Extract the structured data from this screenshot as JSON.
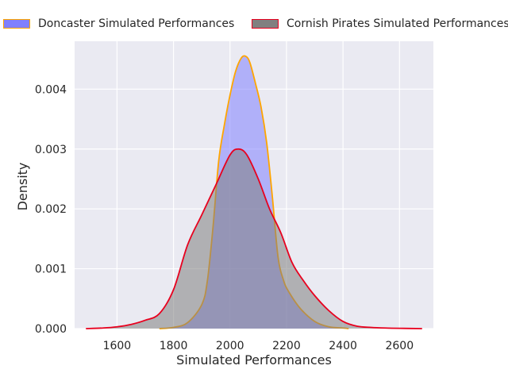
{
  "chart_data": {
    "type": "area",
    "xlabel": "Simulated Performances",
    "ylabel": "Density",
    "xlim": [
      1450,
      2720
    ],
    "ylim": [
      0,
      0.0048
    ],
    "xticks": [
      1600,
      1800,
      2000,
      2200,
      2400,
      2600
    ],
    "xtick_labels": [
      "1600",
      "1800",
      "2000",
      "2200",
      "2400",
      "2600"
    ],
    "yticks": [
      0,
      0.001,
      0.002,
      0.003,
      0.004
    ],
    "ytick_labels": [
      "0.000",
      "0.001",
      "0.002",
      "0.003",
      "0.004"
    ],
    "grid": true,
    "legend_position": "top, outside plot",
    "series": [
      {
        "name": "Doncaster Simulated Performances",
        "fill": "#8080ff",
        "line": "#ffa500",
        "x": [
          1750,
          1800,
          1850,
          1900,
          1920,
          1940,
          1960,
          1980,
          2000,
          2020,
          2040,
          2055,
          2070,
          2090,
          2110,
          2130,
          2150,
          2170,
          2190,
          2210,
          2250,
          2300,
          2350,
          2400,
          2420
        ],
        "y": [
          0,
          2e-05,
          0.0001,
          0.0004,
          0.0008,
          0.0017,
          0.0028,
          0.0034,
          0.0039,
          0.0043,
          0.00452,
          0.00455,
          0.00445,
          0.0041,
          0.0037,
          0.0031,
          0.0022,
          0.0012,
          0.0008,
          0.0006,
          0.00033,
          0.00012,
          3e-05,
          1e-05,
          0
        ]
      },
      {
        "name": "Cornish Pirates Simulated Performances",
        "fill": "#808080",
        "line": "#e8001e",
        "x": [
          1490,
          1550,
          1600,
          1650,
          1700,
          1750,
          1800,
          1850,
          1900,
          1950,
          2000,
          2030,
          2060,
          2100,
          2140,
          2180,
          2220,
          2260,
          2300,
          2350,
          2400,
          2450,
          2500,
          2550,
          2600,
          2680
        ],
        "y": [
          0,
          1e-05,
          3e-05,
          7e-05,
          0.00014,
          0.00025,
          0.00065,
          0.0014,
          0.0019,
          0.0024,
          0.0029,
          0.003,
          0.0029,
          0.0025,
          0.002,
          0.0016,
          0.0011,
          0.0008,
          0.00055,
          0.0003,
          0.00012,
          4e-05,
          2e-05,
          1e-05,
          5e-06,
          0
        ]
      }
    ]
  }
}
